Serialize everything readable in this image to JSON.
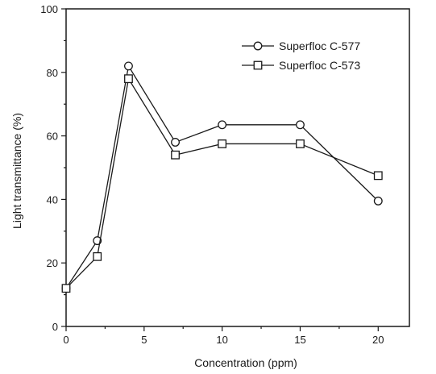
{
  "chart_data": {
    "type": "line",
    "title": "",
    "xlabel": "Concentration (ppm)",
    "ylabel": "Light transmittance (%)",
    "xlim": [
      0,
      22
    ],
    "ylim": [
      0,
      100
    ],
    "x_ticks": [
      0,
      5,
      10,
      15,
      20
    ],
    "y_ticks": [
      0,
      20,
      40,
      60,
      80,
      100
    ],
    "grid": false,
    "legend_position": "top-right",
    "series": [
      {
        "name": "Superfloc C-577",
        "marker": "circle",
        "x": [
          0,
          2,
          4,
          7,
          10,
          15,
          20
        ],
        "y": [
          12,
          27,
          82,
          58,
          63.5,
          63.5,
          39.5
        ]
      },
      {
        "name": "Superfloc C-573",
        "marker": "square",
        "x": [
          0,
          2,
          4,
          7,
          10,
          15,
          20
        ],
        "y": [
          12,
          22,
          78,
          54,
          57.5,
          57.5,
          47.5
        ]
      }
    ]
  }
}
